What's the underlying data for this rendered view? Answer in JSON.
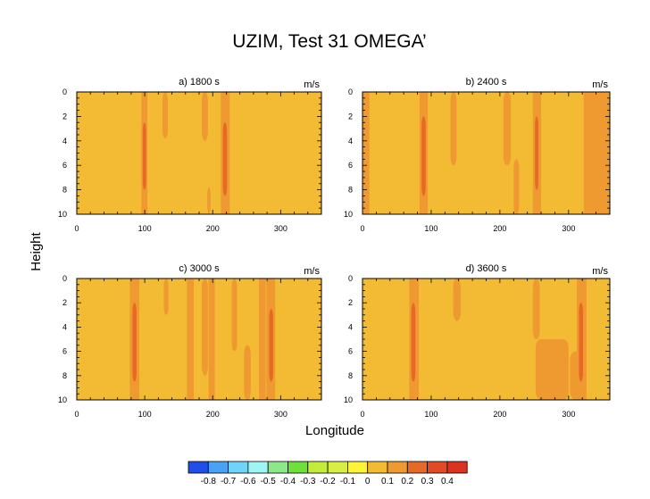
{
  "title": "UZIM, Test 31 OMEGA’",
  "xlabel": "Longitude",
  "ylabel": "Height",
  "chart_data": [
    {
      "type": "heatmap",
      "subtitle": "a) 1800 s",
      "units": "m/s",
      "xlim": [
        0,
        360
      ],
      "ylim": [
        0,
        10
      ],
      "y_reversed": true,
      "xticks": [
        0,
        100,
        200,
        300
      ],
      "yticks": [
        0,
        2,
        4,
        6,
        8,
        10
      ],
      "background_level": 0.0,
      "features": [
        {
          "x": [
            95,
            104
          ],
          "y": [
            0,
            10
          ],
          "level": 0.1
        },
        {
          "x": [
            97,
            102
          ],
          "y": [
            2.5,
            8
          ],
          "level": 0.2
        },
        {
          "x": [
            126,
            134
          ],
          "y": [
            0,
            3.8
          ],
          "level": 0.1
        },
        {
          "x": [
            184,
            193
          ],
          "y": [
            0,
            4
          ],
          "level": 0.1
        },
        {
          "x": [
            192,
            197
          ],
          "y": [
            7.8,
            10
          ],
          "level": 0.1
        },
        {
          "x": [
            212,
            225
          ],
          "y": [
            0,
            10
          ],
          "level": 0.1
        },
        {
          "x": [
            215,
            221
          ],
          "y": [
            2.5,
            8.5
          ],
          "level": 0.2
        }
      ]
    },
    {
      "type": "heatmap",
      "subtitle": "b) 2400 s",
      "units": "m/s",
      "xlim": [
        0,
        360
      ],
      "ylim": [
        0,
        10
      ],
      "y_reversed": true,
      "xticks": [
        0,
        100,
        200,
        300
      ],
      "yticks": [
        0,
        2,
        4,
        6,
        8,
        10
      ],
      "background_level": 0.0,
      "features": [
        {
          "x": [
            0,
            10
          ],
          "y": [
            0,
            10
          ],
          "level": 0.1
        },
        {
          "x": [
            83,
            95
          ],
          "y": [
            0,
            10
          ],
          "level": 0.1
        },
        {
          "x": [
            86,
            92
          ],
          "y": [
            2,
            8.5
          ],
          "level": 0.2
        },
        {
          "x": [
            128,
            137
          ],
          "y": [
            0,
            6
          ],
          "level": 0.1
        },
        {
          "x": [
            205,
            216
          ],
          "y": [
            0,
            6
          ],
          "level": 0.1
        },
        {
          "x": [
            220,
            228
          ],
          "y": [
            5.5,
            10
          ],
          "level": 0.1
        },
        {
          "x": [
            248,
            260
          ],
          "y": [
            0,
            10
          ],
          "level": 0.1
        },
        {
          "x": [
            251,
            256
          ],
          "y": [
            2,
            8
          ],
          "level": 0.2
        },
        {
          "x": [
            322,
            360
          ],
          "y": [
            0,
            10
          ],
          "level": 0.1
        }
      ]
    },
    {
      "type": "heatmap",
      "subtitle": "c) 3000 s",
      "units": "m/s",
      "xlim": [
        0,
        360
      ],
      "ylim": [
        0,
        10
      ],
      "y_reversed": true,
      "xticks": [
        0,
        100,
        200,
        300
      ],
      "yticks": [
        0,
        2,
        4,
        6,
        8,
        10
      ],
      "background_level": 0.0,
      "features": [
        {
          "x": [
            78,
            92
          ],
          "y": [
            0,
            10
          ],
          "level": 0.1
        },
        {
          "x": [
            82,
            88
          ],
          "y": [
            2,
            8.5
          ],
          "level": 0.2
        },
        {
          "x": [
            128,
            135
          ],
          "y": [
            0,
            3
          ],
          "level": 0.1
        },
        {
          "x": [
            162,
            172
          ],
          "y": [
            0,
            10
          ],
          "level": 0.1
        },
        {
          "x": [
            184,
            193
          ],
          "y": [
            0,
            8
          ],
          "level": 0.1
        },
        {
          "x": [
            194,
            203
          ],
          "y": [
            0,
            10
          ],
          "level": 0.1
        },
        {
          "x": [
            228,
            236
          ],
          "y": [
            0,
            6
          ],
          "level": 0.1
        },
        {
          "x": [
            246,
            256
          ],
          "y": [
            5.5,
            10
          ],
          "level": 0.1
        },
        {
          "x": [
            268,
            278
          ],
          "y": [
            0,
            10
          ],
          "level": 0.1
        },
        {
          "x": [
            279,
            292
          ],
          "y": [
            0,
            10
          ],
          "level": 0.1
        },
        {
          "x": [
            283,
            289
          ],
          "y": [
            2.5,
            8.5
          ],
          "level": 0.2
        }
      ]
    },
    {
      "type": "heatmap",
      "subtitle": "d) 3600 s",
      "units": "m/s",
      "xlim": [
        0,
        360
      ],
      "ylim": [
        0,
        10
      ],
      "y_reversed": true,
      "xticks": [
        0,
        100,
        200,
        300
      ],
      "yticks": [
        0,
        2,
        4,
        6,
        8,
        10
      ],
      "background_level": 0.0,
      "features": [
        {
          "x": [
            68,
            82
          ],
          "y": [
            0,
            10
          ],
          "level": 0.1
        },
        {
          "x": [
            71,
            77
          ],
          "y": [
            2,
            8.5
          ],
          "level": 0.2
        },
        {
          "x": [
            132,
            143
          ],
          "y": [
            0,
            3.5
          ],
          "level": 0.1
        },
        {
          "x": [
            248,
            258
          ],
          "y": [
            0,
            5
          ],
          "level": 0.1
        },
        {
          "x": [
            252,
            300
          ],
          "y": [
            5,
            10
          ],
          "level": 0.1
        },
        {
          "x": [
            302,
            318
          ],
          "y": [
            6,
            10
          ],
          "level": 0.1
        },
        {
          "x": [
            312,
            326
          ],
          "y": [
            0,
            10
          ],
          "level": 0.1
        },
        {
          "x": [
            315,
            321
          ],
          "y": [
            2,
            8.5
          ],
          "level": 0.2
        }
      ]
    }
  ],
  "colorbar": {
    "labels": [
      "-0.8",
      "-0.7",
      "-0.6",
      "-0.5",
      "-0.4",
      "-0.3",
      "-0.2",
      "-0.1",
      "0",
      "0.1",
      "0.2",
      "0.3",
      "0.4"
    ],
    "colors": [
      "#1f4fe8",
      "#4aa2f4",
      "#6fd4f7",
      "#9ff5f4",
      "#8ce98a",
      "#6ee03c",
      "#c3ed39",
      "#d9ee45",
      "#fdf438",
      "#f3bb34",
      "#ee9a30",
      "#e66a26",
      "#e14a24",
      "#dd3122"
    ]
  }
}
